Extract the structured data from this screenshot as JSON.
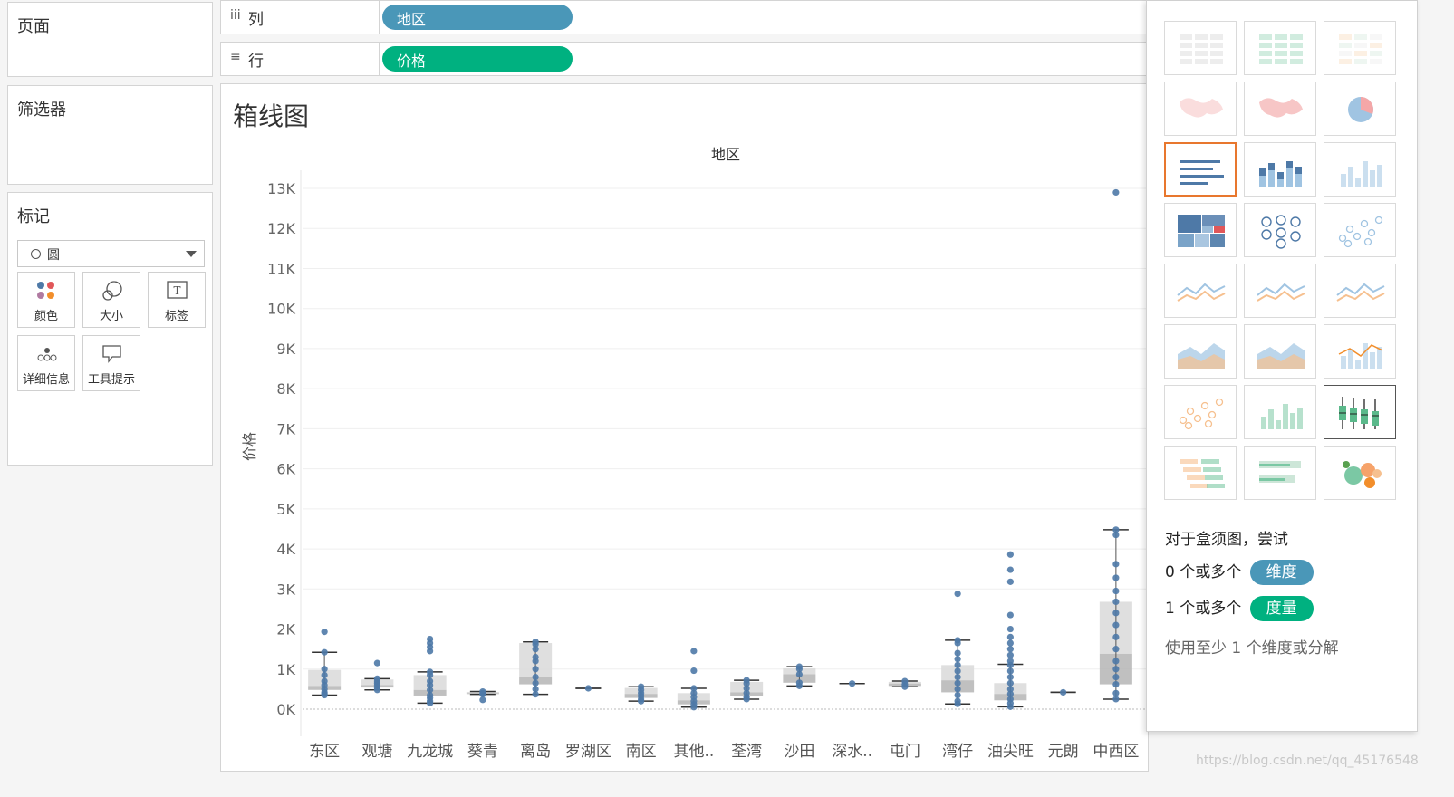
{
  "pages": {
    "title": "页面"
  },
  "filters": {
    "title": "筛选器"
  },
  "marks": {
    "title": "标记",
    "mark_type": "圆",
    "buttons": [
      "颜色",
      "大小",
      "标签",
      "详细信息",
      "工具提示"
    ]
  },
  "columns_shelf": {
    "label": "列",
    "icon": "iii",
    "pill": "地区",
    "pill_color": "#4a97b8"
  },
  "rows_shelf": {
    "label": "行",
    "icon": "≡",
    "pill": "价格",
    "pill_color": "#00b180"
  },
  "viz": {
    "title": "箱线图",
    "header": "地区",
    "ylabel": "价格"
  },
  "chart_data": {
    "type": "boxplot",
    "title": "箱线图",
    "xlabel": "地区",
    "ylabel": "价格",
    "y_ticks": [
      "0K",
      "1K",
      "2K",
      "3K",
      "4K",
      "5K",
      "6K",
      "7K",
      "8K",
      "9K",
      "10K",
      "11K",
      "12K",
      "13K"
    ],
    "ylim": [
      0,
      13500
    ],
    "categories": [
      "东区",
      "观塘",
      "九龙城",
      "葵青",
      "离岛",
      "罗湖区",
      "南区",
      "其他..",
      "荃湾",
      "沙田",
      "深水..",
      "屯门",
      "湾仔",
      "油尖旺",
      "元朗",
      "中西区"
    ],
    "boxes": [
      {
        "min": 350,
        "q1": 480,
        "median": 580,
        "q3": 980,
        "max": 1420,
        "points": [
          1930,
          1420,
          1000,
          850,
          700,
          600,
          500,
          420,
          380,
          350
        ]
      },
      {
        "min": 480,
        "q1": 540,
        "median": 600,
        "q3": 740,
        "max": 760,
        "points": [
          1150,
          760,
          700,
          650,
          600,
          540,
          480
        ]
      },
      {
        "min": 150,
        "q1": 340,
        "median": 480,
        "q3": 850,
        "max": 930,
        "points": [
          1750,
          1650,
          1550,
          1450,
          930,
          850,
          700,
          600,
          480,
          350,
          280,
          200,
          150
        ]
      },
      {
        "min": 370,
        "q1": 380,
        "median": 400,
        "q3": 430,
        "max": 440,
        "points": [
          440,
          400,
          370,
          230
        ]
      },
      {
        "min": 370,
        "q1": 620,
        "median": 800,
        "q3": 1650,
        "max": 1680,
        "points": [
          1680,
          1620,
          1500,
          1300,
          1200,
          1000,
          800,
          650,
          500,
          370
        ]
      },
      {
        "min": 520,
        "q1": 520,
        "median": 520,
        "q3": 520,
        "max": 520,
        "points": [
          520
        ]
      },
      {
        "min": 200,
        "q1": 280,
        "median": 380,
        "q3": 530,
        "max": 560,
        "points": [
          560,
          480,
          400,
          330,
          250,
          200
        ]
      },
      {
        "min": 50,
        "q1": 120,
        "median": 220,
        "q3": 400,
        "max": 520,
        "points": [
          1450,
          960,
          520,
          400,
          300,
          200,
          120,
          50
        ]
      },
      {
        "min": 250,
        "q1": 330,
        "median": 420,
        "q3": 680,
        "max": 720,
        "points": [
          720,
          640,
          520,
          400,
          300,
          250
        ]
      },
      {
        "min": 580,
        "q1": 660,
        "median": 870,
        "q3": 1020,
        "max": 1060,
        "points": [
          1060,
          1000,
          870,
          660,
          580
        ]
      },
      {
        "min": 640,
        "q1": 640,
        "median": 640,
        "q3": 640,
        "max": 640,
        "points": [
          640
        ]
      },
      {
        "min": 560,
        "q1": 580,
        "median": 640,
        "q3": 680,
        "max": 700,
        "points": [
          700,
          620,
          560
        ]
      },
      {
        "min": 130,
        "q1": 420,
        "median": 720,
        "q3": 1100,
        "max": 1720,
        "points": [
          2880,
          1720,
          1650,
          1400,
          1250,
          1100,
          950,
          800,
          650,
          500,
          350,
          200,
          130
        ]
      },
      {
        "min": 60,
        "q1": 220,
        "median": 380,
        "q3": 650,
        "max": 1120,
        "points": [
          3860,
          3480,
          3180,
          2350,
          2000,
          1800,
          1650,
          1500,
          1350,
          1200,
          1100,
          950,
          800,
          650,
          500,
          380,
          250,
          150,
          60
        ]
      },
      {
        "min": 420,
        "q1": 420,
        "median": 420,
        "q3": 420,
        "max": 420,
        "points": [
          420
        ]
      },
      {
        "min": 250,
        "q1": 620,
        "median": 1380,
        "q3": 2680,
        "max": 4480,
        "points": [
          12900,
          4480,
          4350,
          3620,
          3280,
          2950,
          2680,
          2400,
          2100,
          1800,
          1500,
          1200,
          1000,
          800,
          620,
          400,
          250
        ]
      }
    ]
  },
  "showme": {
    "hint_title": "对于盒须图，尝试",
    "row1_prefix": "0 个或多个",
    "row1_pill": "维度",
    "row2_prefix": "1 个或多个",
    "row2_pill": "度量",
    "note": "使用至少 1 个维度或分解"
  },
  "watermark": "https://blog.csdn.net/qq_45176548"
}
